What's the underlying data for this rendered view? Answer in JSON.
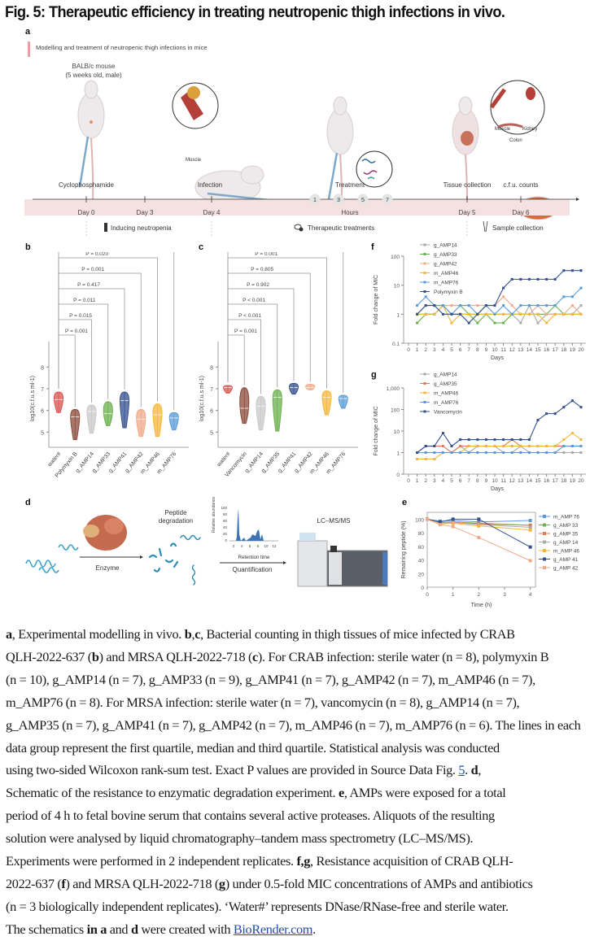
{
  "figure": {
    "title": "Fig. 5: Therapeutic efficiency in treating neutropenic thigh infections in vivo."
  },
  "panel_a": {
    "letter": "a",
    "subtitle": "Modelling and treatment of neutropenic thigh infections in mice",
    "mouse_label_1": "BALB/c mouse",
    "mouse_label_2": "(5 weeks old, male)",
    "muscle_label": "Muscle",
    "organ_labels": [
      "Muscle",
      "Kidney",
      "Colon"
    ],
    "stage_labels": [
      "Cyclophosphamide",
      "Infection",
      "Treatment",
      "Tissue collection",
      "c.f.u. counts"
    ],
    "days": [
      "Day 0",
      "Day 3",
      "Day 4",
      "Day 5",
      "Day 6"
    ],
    "hours": [
      "1",
      "3",
      "5",
      "7"
    ],
    "hours_label": "Hours",
    "phases": [
      "Inducing neutropenia",
      "Therapeutic treatments",
      "Sample collection"
    ]
  },
  "chart_data": [
    {
      "id": "b",
      "type": "violin",
      "ylabel": "log10(c.f.u.s ml-1)",
      "ylim": [
        4.3,
        8.8
      ],
      "yticks": [
        5,
        6,
        7,
        8
      ],
      "categories": [
        "water#",
        "Polymyxin B",
        "g_AMP14",
        "g_AMP33",
        "g_AMP41",
        "g_AMP42",
        "m_AMP46",
        "m_AMP76"
      ],
      "colors": [
        "#d9534f",
        "#8b4a3a",
        "#c8c8c8",
        "#6ab04c",
        "#34508f",
        "#f0a98a",
        "#f4b73a",
        "#5b9bd5"
      ],
      "medians": [
        6.5,
        5.7,
        5.95,
        5.85,
        6.45,
        5.6,
        5.8,
        5.65
      ],
      "mins": [
        5.9,
        4.65,
        4.95,
        5.3,
        5.2,
        4.8,
        4.8,
        5.1
      ],
      "maxs": [
        6.85,
        6.05,
        6.25,
        6.4,
        6.85,
        6.05,
        6.3,
        5.9
      ],
      "comparisons": [
        {
          "to": "Polymyxin B",
          "p": "P = 0.001"
        },
        {
          "to": "g_AMP14",
          "p": "P = 0.015"
        },
        {
          "to": "g_AMP33",
          "p": "P = 0.011"
        },
        {
          "to": "g_AMP41",
          "p": "P = 0.417"
        },
        {
          "to": "g_AMP42",
          "p": "P = 0.001"
        },
        {
          "to": "m_AMP46",
          "p": "P = 0.020"
        },
        {
          "to": "m_AMP76",
          "p": "P < 0.001"
        }
      ]
    },
    {
      "id": "c",
      "type": "violin",
      "ylabel": "log10(c.f.u.s ml-1)",
      "ylim": [
        4.3,
        8.8
      ],
      "yticks": [
        5,
        6,
        7,
        8
      ],
      "categories": [
        "water#",
        "Vancomycin",
        "g_AMP14",
        "g_AMP35",
        "g_AMP41",
        "g_AMP42",
        "m_AMP46",
        "m_AMP76"
      ],
      "colors": [
        "#d9534f",
        "#8b4a3a",
        "#c8c8c8",
        "#6ab04c",
        "#34508f",
        "#f0a98a",
        "#f4b73a",
        "#5b9bd5"
      ],
      "medians": [
        7.05,
        6.1,
        6.2,
        6.6,
        7.05,
        7.05,
        6.6,
        6.55
      ],
      "mins": [
        6.8,
        5.4,
        5.1,
        5.05,
        6.75,
        6.95,
        5.8,
        6.1
      ],
      "maxs": [
        7.15,
        7.05,
        6.65,
        6.95,
        7.25,
        7.2,
        6.9,
        6.7
      ],
      "comparisons": [
        {
          "to": "Vancomycin",
          "p": "P = 0.001"
        },
        {
          "to": "g_AMP14",
          "p": "P < 0.001"
        },
        {
          "to": "g_AMP35",
          "p": "P < 0.001"
        },
        {
          "to": "g_AMP41",
          "p": "P = 0.902"
        },
        {
          "to": "g_AMP42",
          "p": "P = 0.805"
        },
        {
          "to": "m_AMP46",
          "p": "P = 0.001"
        },
        {
          "to": "m_AMP76",
          "p": "P = 0.001"
        }
      ]
    },
    {
      "id": "f",
      "type": "line",
      "xlabel": "Days",
      "ylabel": "Fold change of MIC",
      "yscale": "log",
      "ylim": [
        0.1,
        100
      ],
      "yticks": [
        "0.1",
        "1",
        "10",
        "100"
      ],
      "x": [
        1,
        2,
        3,
        4,
        5,
        6,
        7,
        8,
        9,
        10,
        11,
        12,
        13,
        14,
        15,
        16,
        17,
        18,
        19,
        20
      ],
      "xticks": [
        0,
        1,
        2,
        3,
        4,
        5,
        6,
        7,
        8,
        9,
        10,
        11,
        12,
        13,
        14,
        15,
        16,
        17,
        18,
        19,
        20
      ],
      "series": [
        {
          "name": "g_AMP14",
          "color": "#aaaaaa",
          "values": [
            1,
            1,
            1,
            2,
            1,
            1,
            1,
            1,
            1,
            1,
            1,
            1,
            0.5,
            2,
            0.5,
            1,
            1,
            1,
            1,
            2
          ]
        },
        {
          "name": "g_AMP33",
          "color": "#6ab04c",
          "values": [
            0.5,
            1,
            1,
            2,
            2,
            2,
            1,
            0.5,
            1,
            0.5,
            0.5,
            1,
            1,
            1,
            1,
            1,
            2,
            1,
            1,
            1
          ]
        },
        {
          "name": "g_AMP42",
          "color": "#f0a98a",
          "values": [
            1,
            2,
            2,
            2,
            2,
            2,
            2,
            2,
            2,
            2,
            4,
            2,
            1,
            1,
            2,
            1,
            1,
            1,
            2,
            1
          ]
        },
        {
          "name": "m_AMP46",
          "color": "#f4b73a",
          "values": [
            1,
            1,
            1,
            2,
            0.5,
            1,
            1,
            1,
            1,
            1,
            1,
            1,
            1,
            1,
            1,
            0.5,
            1,
            1,
            1,
            1
          ]
        },
        {
          "name": "m_AMP76",
          "color": "#5b9bd5",
          "values": [
            2,
            4,
            2,
            2,
            1,
            2,
            2,
            1,
            2,
            1,
            2,
            1,
            2,
            2,
            2,
            2,
            2,
            4,
            4,
            8
          ]
        },
        {
          "name": "Polymyxin B",
          "color": "#34508f",
          "values": [
            1,
            2,
            2,
            1,
            1,
            1,
            0.5,
            1,
            2,
            2,
            8,
            16,
            16,
            16,
            16,
            16,
            16,
            32,
            32,
            32
          ]
        }
      ]
    },
    {
      "id": "g",
      "type": "line",
      "xlabel": "Days",
      "ylabel": "Fold change of MIC",
      "yscale": "log",
      "ylim": [
        0.1,
        1000
      ],
      "yticks": [
        "0",
        "1",
        "10",
        "100",
        "1,000"
      ],
      "x": [
        1,
        2,
        3,
        4,
        5,
        6,
        7,
        8,
        9,
        10,
        11,
        12,
        13,
        14,
        15,
        16,
        17,
        18,
        19,
        20
      ],
      "xticks": [
        0,
        1,
        2,
        3,
        4,
        5,
        6,
        7,
        8,
        9,
        10,
        11,
        12,
        13,
        14,
        15,
        16,
        17,
        18,
        19,
        20
      ],
      "series": [
        {
          "name": "g_AMP14",
          "color": "#aaaaaa",
          "values": [
            1,
            1,
            1,
            1,
            1,
            2,
            1,
            2,
            2,
            2,
            1,
            1,
            2,
            1,
            1,
            1,
            1,
            1,
            1,
            1
          ]
        },
        {
          "name": "g_AMP35",
          "color": "#e07b54",
          "values": [
            1,
            2,
            2,
            2,
            1,
            2,
            2,
            2,
            2,
            2,
            2,
            4,
            2,
            2,
            2,
            2,
            2,
            2,
            2,
            2
          ]
        },
        {
          "name": "m_AMP46",
          "color": "#f4b73a",
          "values": [
            0.5,
            0.5,
            0.5,
            1,
            1,
            1,
            2,
            2,
            2,
            2,
            2,
            2,
            2,
            2,
            2,
            2,
            2,
            4,
            8,
            4
          ]
        },
        {
          "name": "m_AMP76",
          "color": "#5b9bd5",
          "values": [
            1,
            1,
            1,
            1,
            1,
            1,
            1,
            1,
            1,
            1,
            1,
            1,
            1,
            1,
            1,
            1,
            1,
            2,
            2,
            2
          ]
        },
        {
          "name": "Vancomycin",
          "color": "#34508f",
          "values": [
            1,
            2,
            2,
            8,
            2,
            4,
            4,
            4,
            4,
            4,
            4,
            4,
            4,
            4,
            32,
            64,
            64,
            128,
            256,
            128
          ]
        }
      ]
    },
    {
      "id": "e",
      "type": "line",
      "xlabel": "Time (h)",
      "ylabel": "Remaining peptide (%)",
      "ylim": [
        0,
        110
      ],
      "xlim": [
        0,
        4.2
      ],
      "yticks": [
        0,
        20,
        40,
        60,
        80,
        100
      ],
      "xticks": [
        0,
        1,
        2,
        3,
        4
      ],
      "x": [
        0,
        0.5,
        1,
        2,
        4
      ],
      "series": [
        {
          "name": "m_AMP 76",
          "color": "#5b9bd5",
          "marker": "diamond",
          "values": [
            100,
            97,
            98,
            96,
            98
          ]
        },
        {
          "name": "g_AMP 33",
          "color": "#6ab04c",
          "marker": "circle",
          "values": [
            100,
            95,
            96,
            94,
            91
          ]
        },
        {
          "name": "g_AMP 35",
          "color": "#e07b54",
          "marker": "square",
          "values": [
            100,
            94,
            96,
            93,
            91
          ]
        },
        {
          "name": "g_AMP 14",
          "color": "#aaaaaa",
          "marker": "plus",
          "values": [
            100,
            94,
            95,
            92,
            88
          ]
        },
        {
          "name": "m_AMP 46",
          "color": "#f4b73a",
          "marker": "circle",
          "values": [
            100,
            93,
            94,
            90,
            84
          ]
        },
        {
          "name": "g_AMP 41",
          "color": "#34508f",
          "marker": "triangle",
          "values": [
            100,
            96,
            100,
            100,
            59
          ]
        },
        {
          "name": "g_AMP 42",
          "color": "#f0a98a",
          "marker": "square",
          "values": [
            100,
            92,
            89,
            73,
            39
          ]
        }
      ]
    }
  ],
  "panel_d": {
    "letter": "d",
    "enzyme_label": "Enzyme",
    "degradation_label_1": "Peptide",
    "degradation_label_2": "degradation",
    "chromatogram_ylabel": "Relative abundance",
    "chromatogram_yticks": [
      "0",
      "20",
      "40",
      "60",
      "80",
      "100"
    ],
    "chromatogram_xticks": [
      "2",
      "4",
      "6",
      "8",
      "10",
      "12"
    ],
    "chromatogram_xlabel": "Retention time",
    "quant_label": "Quantification",
    "instrument_label": "LC–MS/MS"
  },
  "caption": {
    "l1": [
      ", Experimental modelling in vivo. ",
      ", Bacterial counting in thigh tissues of mice infected by CRAB"
    ],
    "parts": {
      "a": "a",
      "bc": "b",
      "c": "c",
      "d": "d",
      "e": "e",
      "f": "f",
      "g": "g"
    },
    "line1_tail": ", Bacterial counting in thigh tissues of mice infected by CRAB",
    "line2_a": "QLH-2022-637 (",
    "line2_b": ") and MRSA QLH-2022-718 (",
    "line2_c": "). For CRAB infection: sterile water (n = 8), polymyxin B",
    "line3": "(n = 10), g_AMP14 (n = 7), g_AMP33 (n = 9), g_AMP41 (n = 7), g_AMP42 (n = 7), m_AMP46 (n = 7),",
    "line4": "m_AMP76 (n = 8). For MRSA infection: sterile water (n = 7), vancomycin (n = 8), g_AMP14 (n = 7),",
    "line5": "g_AMP35 (n = 7), g_AMP41 (n = 7), g_AMP42 (n = 7), m_AMP46 (n = 7), m_AMP76 (n = 6). The lines in each",
    "line6": "data group represent the first quartile, median and third quartile. Statistical analysis was conducted",
    "line7_a": "using two-sided Wilcoxon rank-sum test. Exact P values are provided in Source Data Fig. ",
    "line7_link": "5",
    "line7_b": ". ",
    "line7_c": ",",
    "line8_a": "Schematic of the resistance to enzymatic degradation experiment. ",
    "line8_b": ", AMPs were exposed for a total",
    "line9": "period of 4 h to fetal bovine serum that contains several active proteases. Aliquots of the resulting",
    "line10": "solution were analysed by liquid chromatography–tandem mass spectrometry (LC–MS/MS).",
    "line11_a": "Experiments were performed in 2 independent replicates. ",
    "line11_fg": "f,g",
    "line11_b": ", Resistance acquisition of CRAB QLH-",
    "line12_a": "2022-637 (",
    "line12_b": ") and MRSA QLH-2022-718 (",
    "line12_c": ") under 0.5-fold MIC concentrations of AMPs and antibiotics",
    "line13": "(n = 3 biologically independent replicates). ‘Water#’ represents DNase/RNase-free and sterile water.",
    "line14_a": "The schematics ",
    "line14_in": "in a",
    "line14_b": " and ",
    "line14_d": "d",
    "line14_c": " were created with ",
    "line14_link": "BioRender.com",
    "line14_end": "."
  }
}
